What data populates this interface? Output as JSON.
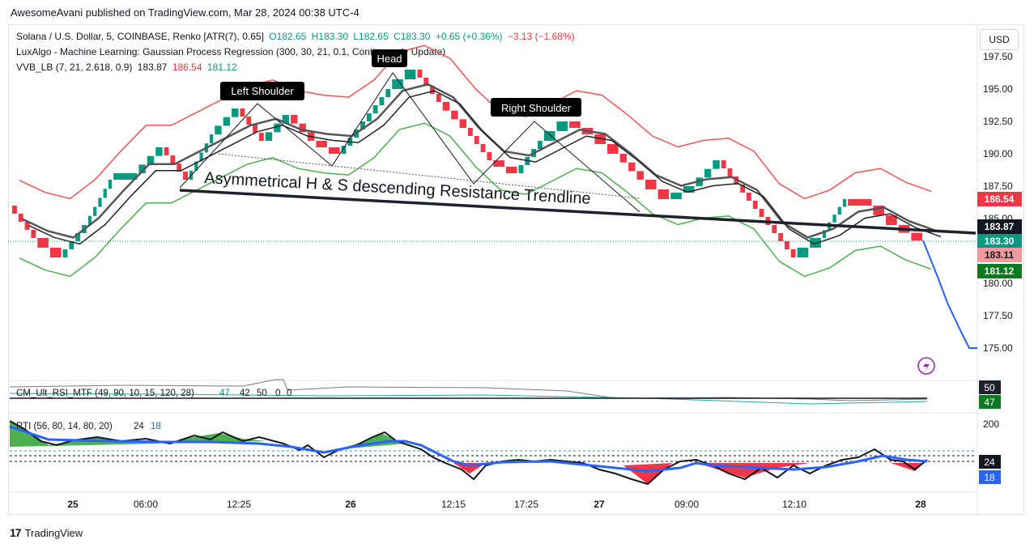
{
  "header": {
    "published": "AwesomeAvani published on TradingView.com, Mar 28, 2024 00:38 UTC-4"
  },
  "legend": {
    "symbol": "Solana / U.S. Dollar, 5, COINBASE, Renko [ATR(7), 0.65]",
    "o": "O182.65",
    "h": "H183.30",
    "l": "L182.65",
    "c": "C183.30",
    "chg": "+0.65 (+0.36%)",
    "chg2": "−3.13 (−1.68%)",
    "lux": "LuxAlgo - Machine Learning: Gaussian Process Regression (300, 30, 21, 0.1, Continuously Update)",
    "vvb_name": "VVB_LB (7, 21, 2.618, 0.9)",
    "vvb_mid": "183.87",
    "vvb_up": "186.54",
    "vvb_lo": "181.12"
  },
  "currency_button": "USD",
  "footer": {
    "brand": "TradingView"
  },
  "annotations": {
    "head": "Head",
    "left_shoulder": "Left Shoulder",
    "right_shoulder": "Right Shoulder",
    "trendline": "Asymmetrical H & S descending Resistance Trendline"
  },
  "rsi_panel": {
    "name": "CM_Ult_RSI_MTF (49, 90, 10, 15, 120, 28)",
    "v1": "47",
    "v2": "42",
    "v3": "50",
    "v4": "0",
    "v5": "0",
    "badge_top": "50",
    "badge_bottom": "47"
  },
  "rti_panel": {
    "name": "RTI (56, 80, 14, 80, 20)",
    "v1": "24",
    "v2": "18",
    "axis_top": "200",
    "badge_top": "24",
    "badge_bottom": "18"
  },
  "colors": {
    "up": "#089981",
    "down": "#f23645",
    "upper_band": "#f05454",
    "lower_band": "#4caf50",
    "mid_line": "#555555",
    "forecast": "#2962ff",
    "trendline": "#1e222d",
    "rti_blue": "#2962ff"
  },
  "chart_data": {
    "type": "line",
    "y_ticks": [
      "197.50",
      "195.00",
      "192.50",
      "190.00",
      "187.50",
      "185.00",
      "180.00",
      "177.50",
      "175.00"
    ],
    "x_ticks": [
      "25",
      "06:00",
      "12:25",
      "26",
      "12:15",
      "17:25",
      "27",
      "09:00",
      "12:10",
      "28"
    ],
    "price_badges": [
      {
        "label": "186.54",
        "value": 186.54,
        "color": "#f23645"
      },
      {
        "label": "183.87",
        "value": 183.87,
        "color": "#131722"
      },
      {
        "label": "183.30",
        "value": 183.3,
        "color": "#089981"
      },
      {
        "label": "183.11",
        "value": 183.11,
        "color": "#ef9a9a"
      },
      {
        "label": "181.12",
        "value": 181.12,
        "color": "#0b7a1f"
      }
    ],
    "ylim": [
      173.0,
      199.0
    ],
    "series": [
      {
        "name": "close",
        "values": [
          186,
          183.5,
          182,
          184.5,
          188,
          188.5,
          190.5,
          188,
          191.5,
          193.5,
          191,
          193,
          191,
          190,
          192.5,
          195,
          196.5,
          194,
          192,
          189.5,
          188.5,
          191,
          192.5,
          191.5,
          190,
          188,
          186.5,
          187.5,
          189.5,
          187,
          184.5,
          182,
          183.5,
          186.5,
          186,
          184.5,
          183.3
        ]
      },
      {
        "name": "forecast",
        "values": [
          183.3,
          180.5,
          178.5,
          176.5,
          175.0,
          175.0
        ]
      }
    ]
  }
}
